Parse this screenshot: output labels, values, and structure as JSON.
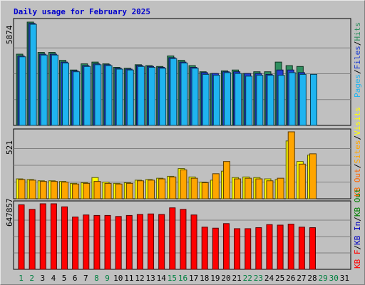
{
  "chart_data": [
    {
      "type": "bar",
      "title": "Daily usage for February 2025",
      "categories": [
        "1",
        "2",
        "3",
        "4",
        "5",
        "6",
        "7",
        "8",
        "9",
        "10",
        "11",
        "12",
        "13",
        "14",
        "15",
        "16",
        "17",
        "18",
        "19",
        "20",
        "21",
        "22",
        "23",
        "24",
        "25",
        "26",
        "27",
        "28",
        "29",
        "30",
        "31"
      ],
      "weekend_days": [
        "1",
        "2",
        "8",
        "9",
        "15",
        "16",
        "22",
        "23",
        "29",
        "30"
      ],
      "ylabel_max": "5874",
      "legend": [
        "Hits",
        "Files",
        "Pages"
      ],
      "colors": {
        "Hits": "#2f8f5f",
        "Files": "#1f3fd0",
        "Pages": "#1fb4f0"
      },
      "series": [
        {
          "name": "Hits",
          "values": [
            4050,
            5874,
            4150,
            4150,
            3700,
            3150,
            3500,
            3600,
            3500,
            3300,
            3250,
            3450,
            3400,
            3350,
            3950,
            3700,
            3400,
            3050,
            2950,
            3100,
            3150,
            2950,
            3050,
            3050,
            3600,
            3400,
            3350,
            0,
            0,
            0,
            0
          ]
        },
        {
          "name": "Files",
          "values": [
            3950,
            5800,
            4050,
            4050,
            3600,
            3100,
            3400,
            3500,
            3450,
            3250,
            3200,
            3400,
            3350,
            3300,
            3850,
            3600,
            3300,
            3000,
            2950,
            3050,
            3050,
            2950,
            2950,
            2900,
            3150,
            3150,
            3000,
            0,
            0,
            0,
            0
          ]
        },
        {
          "name": "Pages",
          "values": [
            3900,
            5750,
            4000,
            4000,
            3550,
            3050,
            3350,
            3450,
            3400,
            3200,
            3150,
            3350,
            3300,
            3250,
            3800,
            3550,
            3250,
            2900,
            2850,
            3000,
            2950,
            2800,
            2850,
            2850,
            2850,
            3000,
            2900,
            2900,
            0,
            0,
            0
          ]
        }
      ]
    },
    {
      "type": "bar",
      "ylabel_max": "521",
      "legend": [
        "Visits",
        "Sites",
        "KB Out"
      ],
      "colors": {
        "Visits": "#ffff00",
        "Sites": "#ffa500",
        "KB Out": "#ff6600"
      },
      "series": [
        {
          "name": "Visits",
          "values": [
            155,
            150,
            140,
            140,
            135,
            120,
            125,
            165,
            130,
            120,
            125,
            145,
            150,
            160,
            175,
            235,
            170,
            130,
            145,
            215,
            165,
            170,
            165,
            155,
            150,
            450,
            290,
            340,
            0,
            0,
            0
          ]
        },
        {
          "name": "Sites",
          "values": [
            150,
            145,
            135,
            135,
            130,
            115,
            120,
            135,
            120,
            115,
            120,
            140,
            145,
            155,
            170,
            225,
            160,
            125,
            195,
            290,
            155,
            160,
            155,
            140,
            160,
            521,
            270,
            350,
            0,
            0,
            0
          ]
        }
      ]
    },
    {
      "type": "bar",
      "ylabel_max": "647857",
      "legend": [
        "KB In",
        "KB Out",
        "KB F"
      ],
      "colors": {
        "KB F": "#ff0000",
        "KB In": "#0000c0",
        "KB Out": "#008000"
      },
      "series": [
        {
          "name": "KB F",
          "values": [
            635000,
            590000,
            645000,
            645000,
            615000,
            515000,
            535000,
            530000,
            530000,
            520000,
            530000,
            540000,
            545000,
            540000,
            605000,
            590000,
            535000,
            415000,
            405000,
            450000,
            400000,
            400000,
            410000,
            440000,
            435000,
            445000,
            415000,
            410000,
            0,
            0,
            0
          ]
        }
      ]
    }
  ],
  "x_label_colors": {
    "weekday": "#000000",
    "weekend": "#008040"
  }
}
